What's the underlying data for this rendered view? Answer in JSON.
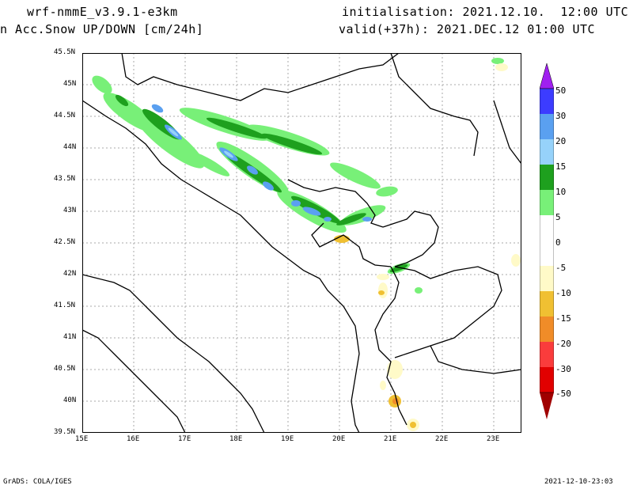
{
  "header": {
    "model": "wrf-nmmE_v3.9.1-e3km",
    "field": "n Acc.Snow UP/DOWN [cm/24h]",
    "init": "initialisation: 2021.12.10.  12:00 UTC",
    "valid": "valid(+37h): 2021.DEC.12 01:00 UTC"
  },
  "footer": {
    "left": "GrADS: COLA/IGES",
    "right": "2021-12-10-23:03"
  },
  "axes": {
    "lat_ticks": [
      "45.5N",
      "45N",
      "44.5N",
      "44N",
      "43.5N",
      "43N",
      "42.5N",
      "42N",
      "41.5N",
      "41N",
      "40.5N",
      "40N",
      "39.5N"
    ],
    "lon_ticks": [
      "15E",
      "16E",
      "17E",
      "18E",
      "19E",
      "20E",
      "21E",
      "22E",
      "23E"
    ]
  },
  "colorbar": {
    "labels": [
      "50",
      "30",
      "20",
      "15",
      "10",
      "5",
      "0",
      "-5",
      "-10",
      "-15",
      "-20",
      "-30",
      "-50"
    ],
    "colors": [
      "#a020f0",
      "#3c3cff",
      "#5aa0f0",
      "#96d2fa",
      "#1ea01e",
      "#78f078",
      "#ffffff",
      "#fffac8",
      "#f0c032",
      "#f08c28",
      "#fa3c3c",
      "#e10000",
      "#a00000"
    ]
  }
}
